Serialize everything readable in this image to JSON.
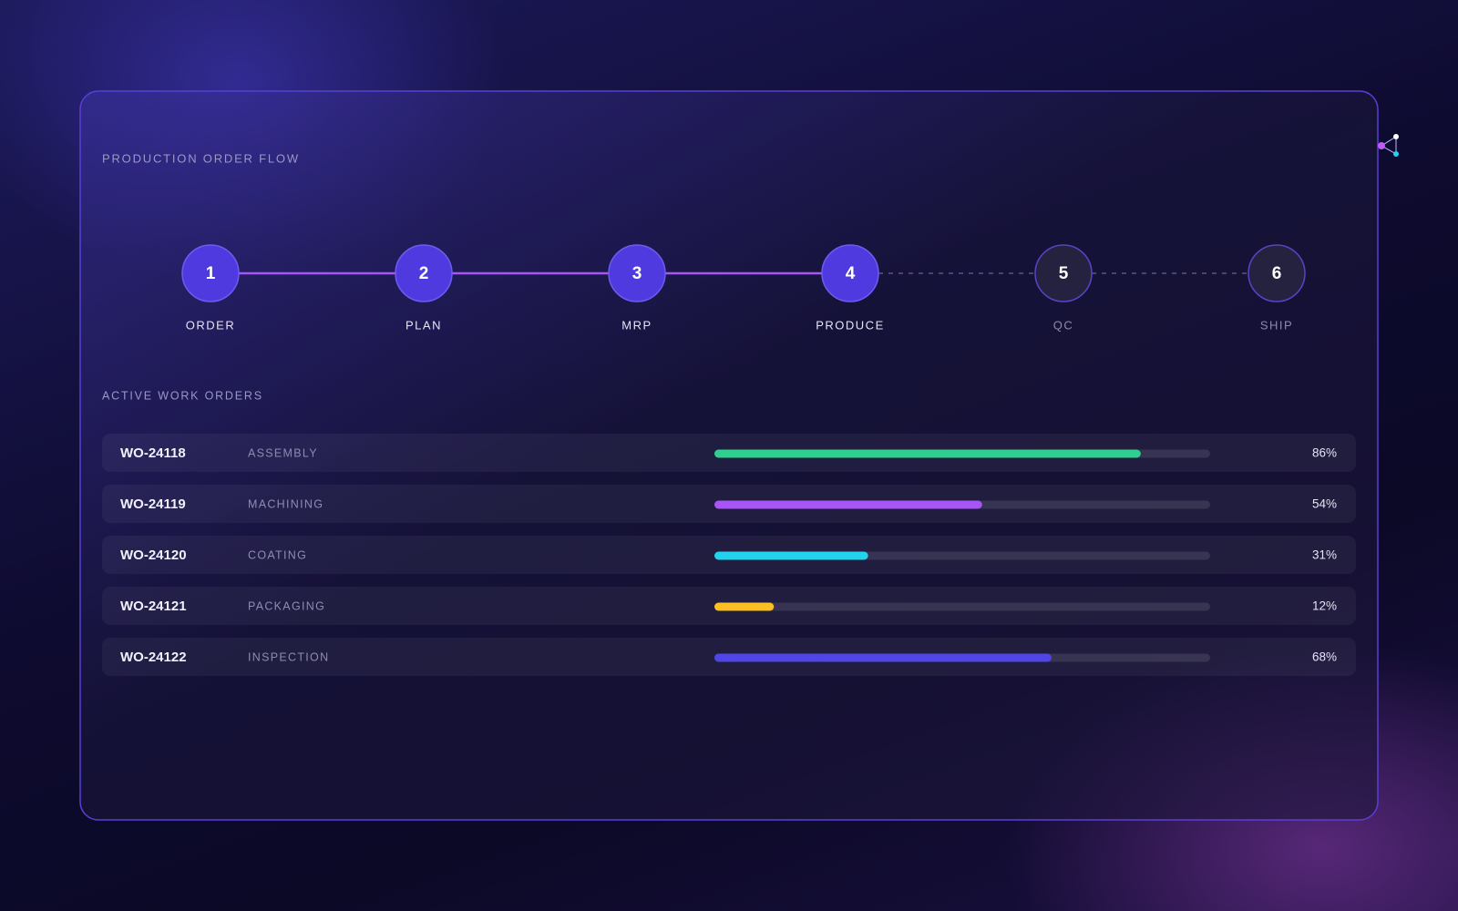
{
  "header": {
    "title": "PRODUCTION ORDER FLOW"
  },
  "steps": [
    {
      "number": 1,
      "label": "ORDER",
      "active": true
    },
    {
      "number": 2,
      "label": "PLAN",
      "active": true
    },
    {
      "number": 3,
      "label": "MRP",
      "active": true
    },
    {
      "number": 4,
      "label": "PRODUCE",
      "active": true
    },
    {
      "number": 5,
      "label": "QC",
      "active": false
    },
    {
      "number": 6,
      "label": "SHIP",
      "active": false
    }
  ],
  "orders_title": "ACTIVE WORK ORDERS",
  "orders": [
    {
      "id": "WO-24118",
      "process": "ASSEMBLY",
      "progress": 86,
      "progress_label": "86%",
      "color": "#2fcf8f"
    },
    {
      "id": "WO-24119",
      "process": "MACHINING",
      "progress": 54,
      "progress_label": "54%",
      "color": "#a855f7"
    },
    {
      "id": "WO-24120",
      "process": "COATING",
      "progress": 31,
      "progress_label": "31%",
      "color": "#22d3ee"
    },
    {
      "id": "WO-24121",
      "process": "PACKAGING",
      "progress": 12,
      "progress_label": "12%",
      "color": "#fbbf24"
    },
    {
      "id": "WO-24122",
      "process": "INSPECTION",
      "progress": 68,
      "progress_label": "68%",
      "color": "#4f46e5"
    }
  ]
}
